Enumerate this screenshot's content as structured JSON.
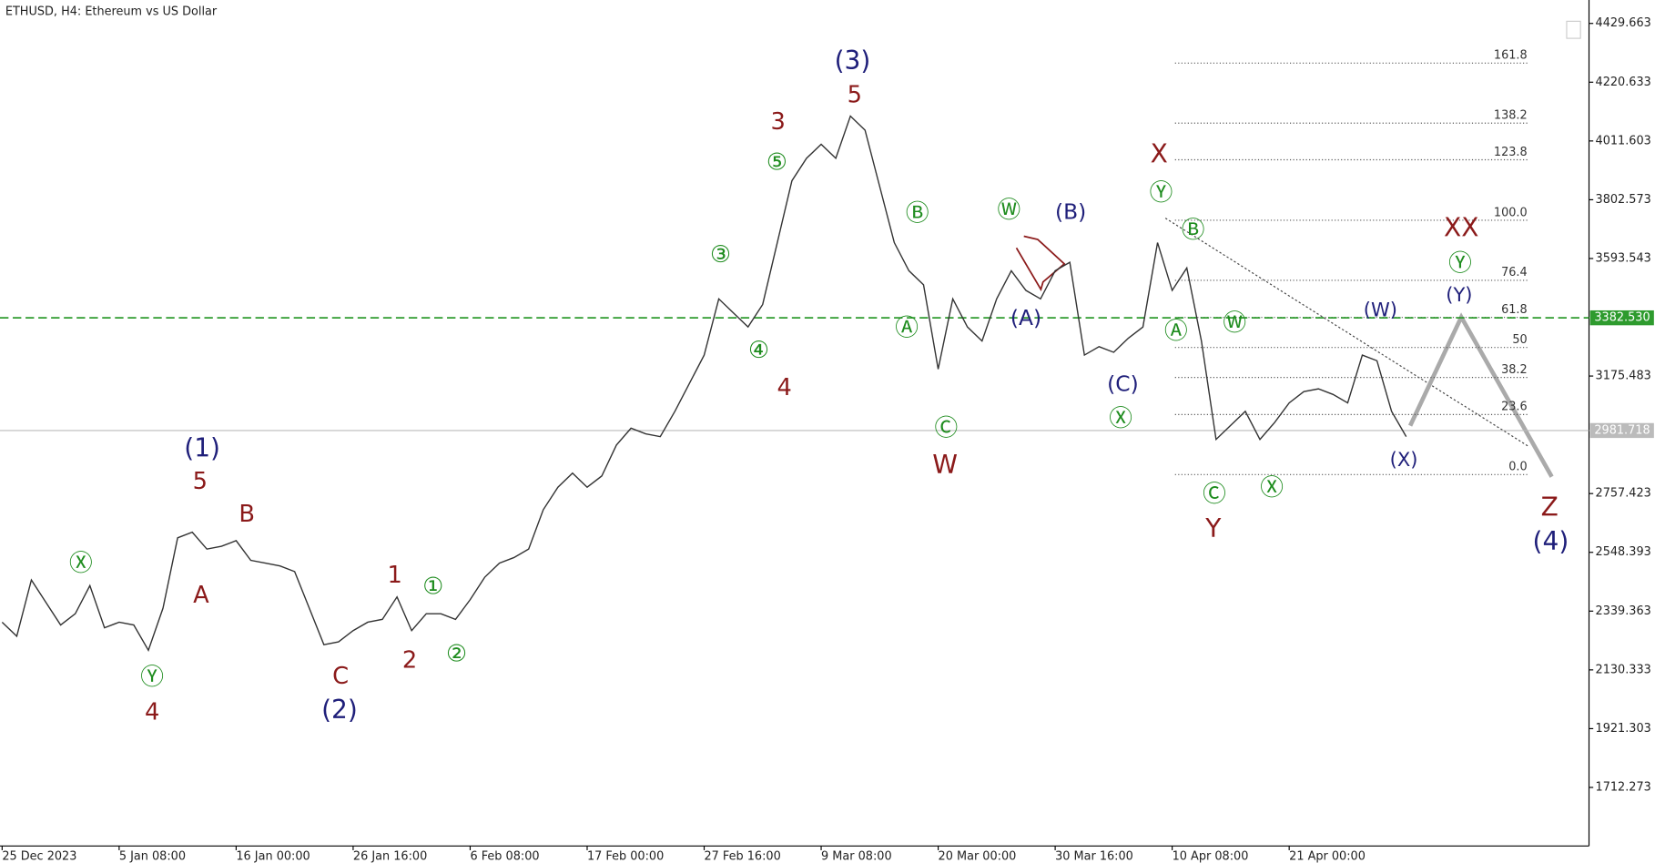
{
  "chart_data": {
    "type": "line",
    "title": "ETHUSD, H4:  Ethereum vs US Dollar",
    "xlim": [
      0,
      868
    ],
    "xticks": [
      {
        "value": 0,
        "label": "25 Dec 2023"
      },
      {
        "value": 64,
        "label": "5 Jan 08:00"
      },
      {
        "value": 128,
        "label": "16 Jan 00:00"
      },
      {
        "value": 192,
        "label": "26 Jan 16:00"
      },
      {
        "value": 256,
        "label": "6 Feb 08:00"
      },
      {
        "value": 320,
        "label": "17 Feb 00:00"
      },
      {
        "value": 384,
        "label": "27 Feb 16:00"
      },
      {
        "value": 448,
        "label": "9 Mar 08:00"
      },
      {
        "value": 512,
        "label": "20 Mar 00:00"
      },
      {
        "value": 576,
        "label": "30 Mar 16:00"
      },
      {
        "value": 640,
        "label": "10 Apr 08:00"
      },
      {
        "value": 704,
        "label": "21 Apr 00:00"
      }
    ],
    "ylim": [
      1504,
      4513
    ],
    "yticks": [
      4429.663,
      4220.633,
      4011.603,
      3802.573,
      3593.543,
      3175.483,
      2757.423,
      2548.393,
      2339.363,
      2130.333,
      1921.303,
      1712.273
    ],
    "series": [
      {
        "name": "ETHUSD",
        "color": "#333333",
        "x": [
          0,
          8,
          16,
          24,
          32,
          40,
          48,
          56,
          64,
          72,
          80,
          88,
          96,
          104,
          112,
          120,
          128,
          136,
          144,
          152,
          160,
          168,
          176,
          184,
          192,
          200,
          208,
          216,
          224,
          232,
          240,
          248,
          256,
          264,
          272,
          280,
          288,
          296,
          304,
          312,
          320,
          328,
          336,
          344,
          352,
          360,
          368,
          376,
          384,
          392,
          400,
          408,
          416,
          424,
          432,
          440,
          448,
          456,
          464,
          472,
          480,
          488,
          496,
          504,
          512,
          520,
          528,
          536,
          544,
          552,
          560,
          568,
          576,
          584,
          592,
          600,
          608,
          616,
          624,
          632,
          640,
          648,
          656,
          664,
          672,
          680,
          688,
          696,
          704,
          712,
          720,
          728,
          736,
          744,
          752,
          760,
          768
        ],
        "values": [
          2300,
          2250,
          2450,
          2370,
          2290,
          2330,
          2430,
          2280,
          2300,
          2290,
          2200,
          2350,
          2600,
          2620,
          2560,
          2570,
          2590,
          2520,
          2510,
          2500,
          2480,
          2350,
          2220,
          2230,
          2270,
          2300,
          2310,
          2390,
          2270,
          2330,
          2330,
          2310,
          2380,
          2460,
          2510,
          2530,
          2560,
          2700,
          2780,
          2830,
          2780,
          2820,
          2930,
          2990,
          2970,
          2960,
          3050,
          3150,
          3250,
          3450,
          3400,
          3350,
          3430,
          3650,
          3870,
          3950,
          4000,
          3950,
          4100,
          4050,
          3850,
          3650,
          3550,
          3500,
          3200,
          3450,
          3350,
          3300,
          3450,
          3550,
          3480,
          3450,
          3550,
          3580,
          3250,
          3280,
          3260,
          3310,
          3350,
          3650,
          3480,
          3560,
          3300,
          2950,
          3000,
          3050,
          2950,
          3010,
          3080,
          3120,
          3130,
          3110,
          3080,
          3250,
          3230,
          3050,
          2960
        ]
      }
    ],
    "hlines": [
      {
        "value": 3382.53,
        "label": "3382.530",
        "color": "#2e9b2e"
      },
      {
        "value": 2981.718,
        "label": "2981.718",
        "color": "#bbbbbb"
      }
    ],
    "fib": {
      "low": 2825,
      "high": 3729.5,
      "color": "#555555",
      "levels": [
        161.8,
        138.2,
        123.8,
        {
          "value": 100,
          "label": "100.0"
        },
        76.4,
        61.8,
        50,
        38.2,
        23.6,
        {
          "value": 0,
          "label": "0.0"
        }
      ]
    },
    "annotations": [
      {
        "text": "(3)",
        "color": "#1f1f7a"
      },
      {
        "text": "5",
        "color": "#8b1a1a"
      },
      {
        "text": "3",
        "color": "#8b1a1a"
      },
      {
        "text": "⑤",
        "color": "#1e8c1e"
      },
      {
        "text": "③",
        "color": "#1e8c1e"
      },
      {
        "text": "④",
        "color": "#1e8c1e"
      },
      {
        "text": "4",
        "color": "#8b1a1a"
      },
      {
        "text": "Ⓑ",
        "color": "#1e8c1e"
      },
      {
        "text": "Ⓐ",
        "color": "#1e8c1e"
      },
      {
        "text": "Ⓒ",
        "color": "#1e8c1e"
      },
      {
        "text": "W",
        "color": "#8b1a1a"
      },
      {
        "text": "Ⓦ",
        "color": "#1e8c1e"
      },
      {
        "text": "(B)",
        "color": "#1f1f7a"
      },
      {
        "text": "(A)",
        "color": "#1f1f7a"
      },
      {
        "text": "(C)",
        "color": "#1f1f7a"
      },
      {
        "text": "Ⓧ",
        "color": "#1e8c1e"
      },
      {
        "text": "X",
        "color": "#8b1a1a"
      },
      {
        "text": "Ⓨ",
        "color": "#1e8c1e"
      },
      {
        "text": "Ⓑ",
        "color": "#1e8c1e"
      },
      {
        "text": "Ⓐ",
        "color": "#1e8c1e"
      },
      {
        "text": "Ⓦ",
        "color": "#1e8c1e"
      },
      {
        "text": "Ⓒ",
        "color": "#1e8c1e"
      },
      {
        "text": "Y",
        "color": "#8b1a1a"
      },
      {
        "text": "Ⓧ",
        "color": "#1e8c1e"
      },
      {
        "text": "(W)",
        "color": "#1f1f7a"
      },
      {
        "text": "(X)",
        "color": "#1f1f7a"
      },
      {
        "text": "XX",
        "color": "#8b1a1a"
      },
      {
        "text": "Ⓨ",
        "color": "#1e8c1e"
      },
      {
        "text": "(Y)",
        "color": "#1f1f7a"
      },
      {
        "text": "Z",
        "color": "#8b1a1a"
      },
      {
        "text": "(4)",
        "color": "#1f1f7a"
      },
      {
        "text": "(1)",
        "color": "#1f1f7a"
      },
      {
        "text": "5",
        "color": "#8b1a1a"
      },
      {
        "text": "B",
        "color": "#8b1a1a"
      },
      {
        "text": "A",
        "color": "#8b1a1a"
      },
      {
        "text": "Ⓧ",
        "color": "#1e8c1e"
      },
      {
        "text": "Ⓨ",
        "color": "#1e8c1e"
      },
      {
        "text": "4",
        "color": "#8b1a1a"
      },
      {
        "text": "C",
        "color": "#8b1a1a"
      },
      {
        "text": "(2)",
        "color": "#1f1f7a"
      },
      {
        "text": "1",
        "color": "#8b1a1a"
      },
      {
        "text": "①",
        "color": "#1e8c1e"
      },
      {
        "text": "2",
        "color": "#8b1a1a"
      },
      {
        "text": "②",
        "color": "#1e8c1e"
      }
    ]
  }
}
